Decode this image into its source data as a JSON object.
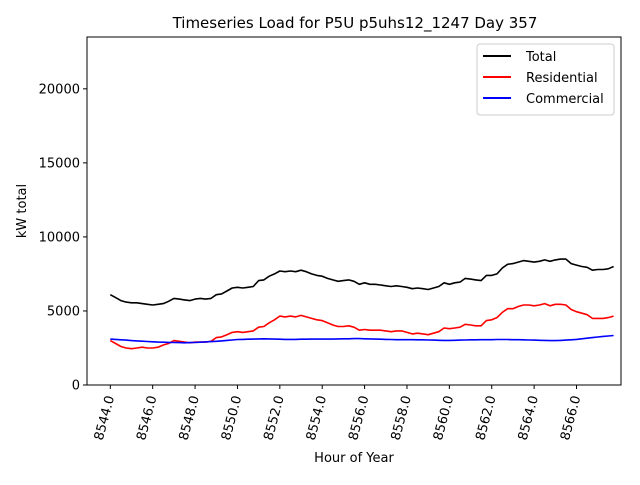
{
  "chart_data": {
    "type": "line",
    "title": "Timeseries Load for P5U p5uhs12_1247  Day 357",
    "xlabel": "Hour of Year",
    "ylabel": "kW total",
    "xlim": [
      8542.9,
      8568.1
    ],
    "ylim": [
      0,
      23500
    ],
    "x_ticks": [
      8544,
      8546,
      8548,
      8550,
      8552,
      8554,
      8556,
      8558,
      8560,
      8562,
      8564,
      8566
    ],
    "x_tick_labels": [
      "8544.0",
      "8546.0",
      "8548.0",
      "8550.0",
      "8552.0",
      "8554.0",
      "8556.0",
      "8558.0",
      "8560.0",
      "8562.0",
      "8564.0",
      "8566.0"
    ],
    "y_ticks": [
      0,
      5000,
      10000,
      15000,
      20000
    ],
    "y_tick_labels": [
      "0",
      "5000",
      "10000",
      "15000",
      "20000"
    ],
    "grid": false,
    "legend_position": "top-right",
    "x": [
      8544.0,
      8544.25,
      8544.5,
      8544.75,
      8545.0,
      8545.25,
      8545.5,
      8545.75,
      8546.0,
      8546.25,
      8546.5,
      8546.75,
      8547.0,
      8547.25,
      8547.5,
      8547.75,
      8548.0,
      8548.25,
      8548.5,
      8548.75,
      8549.0,
      8549.25,
      8549.5,
      8549.75,
      8550.0,
      8550.25,
      8550.5,
      8550.75,
      8551.0,
      8551.25,
      8551.5,
      8551.75,
      8552.0,
      8552.25,
      8552.5,
      8552.75,
      8553.0,
      8553.25,
      8553.5,
      8553.75,
      8554.0,
      8554.25,
      8554.5,
      8554.75,
      8555.0,
      8555.25,
      8555.5,
      8555.75,
      8556.0,
      8556.25,
      8556.5,
      8556.75,
      8557.0,
      8557.25,
      8557.5,
      8557.75,
      8558.0,
      8558.25,
      8558.5,
      8558.75,
      8559.0,
      8559.25,
      8559.5,
      8559.75,
      8560.0,
      8560.25,
      8560.5,
      8560.75,
      8561.0,
      8561.25,
      8561.5,
      8561.75,
      8562.0,
      8562.25,
      8562.5,
      8562.75,
      8563.0,
      8563.25,
      8563.5,
      8563.75,
      8564.0,
      8564.25,
      8564.5,
      8564.75,
      8565.0,
      8565.25,
      8565.5,
      8565.75,
      8566.0,
      8566.25,
      8566.5,
      8566.75,
      8567.0,
      8567.25,
      8567.5,
      8567.75
    ],
    "series": [
      {
        "name": "Total",
        "color": "#000000",
        "values": [
          6100,
          5900,
          5700,
          5600,
          5550,
          5550,
          5500,
          5450,
          5400,
          5450,
          5500,
          5650,
          5850,
          5800,
          5750,
          5700,
          5800,
          5850,
          5800,
          5850,
          6100,
          6150,
          6350,
          6550,
          6600,
          6550,
          6600,
          6650,
          7050,
          7100,
          7350,
          7500,
          7700,
          7650,
          7700,
          7650,
          7750,
          7650,
          7500,
          7400,
          7350,
          7200,
          7100,
          7000,
          7050,
          7100,
          7000,
          6800,
          6900,
          6800,
          6800,
          6750,
          6700,
          6650,
          6700,
          6650,
          6600,
          6500,
          6550,
          6500,
          6450,
          6550,
          6650,
          6900,
          6800,
          6900,
          6950,
          7200,
          7150,
          7100,
          7050,
          7400,
          7400,
          7500,
          7900,
          8150,
          8200,
          8300,
          8400,
          8350,
          8300,
          8350,
          8450,
          8350,
          8450,
          8500,
          8500,
          8200,
          8100,
          8000,
          7950,
          7750,
          7800,
          7800,
          7850,
          8000
        ]
      },
      {
        "name": "Residential",
        "color": "#ff0000",
        "values": [
          3000,
          2800,
          2600,
          2500,
          2450,
          2500,
          2550,
          2500,
          2500,
          2550,
          2700,
          2800,
          3000,
          2950,
          2900,
          2850,
          2900,
          2900,
          2900,
          2950,
          3200,
          3250,
          3400,
          3550,
          3600,
          3550,
          3600,
          3650,
          3900,
          3950,
          4200,
          4400,
          4650,
          4600,
          4650,
          4600,
          4700,
          4600,
          4500,
          4400,
          4350,
          4200,
          4050,
          3950,
          3950,
          4000,
          3900,
          3700,
          3750,
          3700,
          3700,
          3700,
          3650,
          3600,
          3650,
          3650,
          3550,
          3450,
          3500,
          3450,
          3400,
          3500,
          3600,
          3850,
          3800,
          3850,
          3900,
          4100,
          4050,
          4000,
          4000,
          4350,
          4400,
          4550,
          4900,
          5150,
          5150,
          5300,
          5400,
          5400,
          5350,
          5400,
          5500,
          5350,
          5450,
          5450,
          5400,
          5100,
          4950,
          4850,
          4750,
          4500,
          4500,
          4500,
          4550,
          4650
        ]
      },
      {
        "name": "Commercial",
        "color": "#0000ff",
        "values": [
          3100,
          3080,
          3050,
          3030,
          3000,
          2980,
          2960,
          2940,
          2920,
          2900,
          2890,
          2880,
          2870,
          2860,
          2850,
          2860,
          2870,
          2890,
          2910,
          2930,
          2950,
          2980,
          3010,
          3040,
          3070,
          3080,
          3090,
          3100,
          3110,
          3120,
          3110,
          3100,
          3090,
          3080,
          3080,
          3080,
          3090,
          3090,
          3100,
          3100,
          3100,
          3100,
          3100,
          3110,
          3120,
          3120,
          3130,
          3130,
          3120,
          3110,
          3100,
          3090,
          3080,
          3070,
          3060,
          3060,
          3060,
          3060,
          3050,
          3050,
          3040,
          3030,
          3020,
          3010,
          3010,
          3020,
          3030,
          3040,
          3050,
          3050,
          3060,
          3060,
          3060,
          3070,
          3070,
          3070,
          3060,
          3060,
          3050,
          3040,
          3030,
          3020,
          3010,
          3000,
          3000,
          3010,
          3030,
          3050,
          3080,
          3120,
          3160,
          3200,
          3240,
          3280,
          3310,
          3340
        ]
      }
    ]
  }
}
